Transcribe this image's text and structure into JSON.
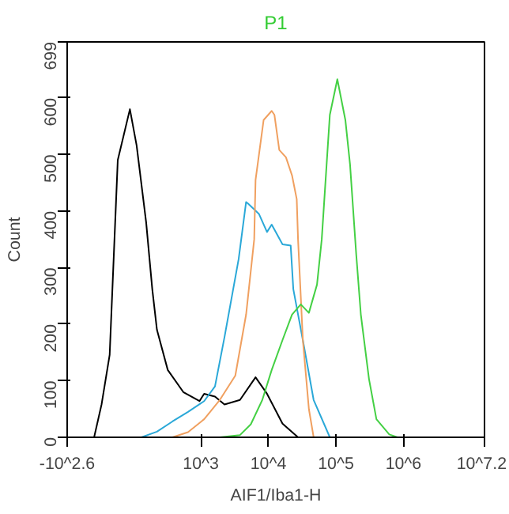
{
  "chart_data": {
    "type": "line",
    "title": "P1",
    "xlabel": "AIF1/Iba1-H",
    "ylabel": "Count",
    "log": "x",
    "xlim": [
      10.5,
      15848932
    ],
    "xticks": [
      {
        "value": 10.5,
        "label": "-10^2.6"
      },
      {
        "value": 1000,
        "label": "10^3"
      },
      {
        "value": 10000,
        "label": "10^4"
      },
      {
        "value": 100000,
        "label": "10^5"
      },
      {
        "value": 1000000,
        "label": "10^6"
      },
      {
        "value": 15848932,
        "label": "10^7.2"
      }
    ],
    "ylim": [
      0,
      699
    ],
    "yticks": [
      0,
      100,
      200,
      300,
      400,
      500,
      600,
      699
    ],
    "grid": false,
    "series": [
      {
        "color": "#000000",
        "x": [
          26.3,
          33.9,
          44.7,
          58.9,
          89.1,
          112,
          155,
          191,
          224,
          324,
          550,
          955,
          1120,
          1620,
          2240,
          3800,
          6460,
          9550,
          16200,
          27500
        ],
        "values": [
          0,
          58,
          146,
          490,
          580,
          516,
          380,
          262,
          190,
          119,
          80,
          64,
          77,
          72,
          58,
          66,
          106,
          77,
          24,
          0
        ]
      },
      {
        "color": "#2aa8d8",
        "x": [
          132,
          224,
          380,
          646,
          1120,
          1620,
          2240,
          3630,
          4680,
          5010,
          7240,
          9550,
          11200,
          16200,
          21400,
          23400,
          32400,
          46800,
          81300
        ],
        "values": [
          0,
          10,
          28,
          45,
          64,
          90,
          177,
          315,
          416,
          413,
          395,
          363,
          376,
          341,
          339,
          262,
          172,
          66,
          0
        ]
      },
      {
        "color": "#f0a060",
        "x": [
          380,
          646,
          1120,
          1910,
          3240,
          4680,
          6170,
          6460,
          8510,
          11200,
          12300,
          14500,
          18200,
          22400,
          26300,
          27500,
          32400,
          39800,
          46800
        ],
        "values": [
          0,
          9,
          32,
          66,
          109,
          217,
          350,
          455,
          561,
          577,
          570,
          508,
          495,
          463,
          421,
          350,
          172,
          50,
          0
        ]
      },
      {
        "color": "#44d044",
        "x": [
          1910,
          3800,
          5500,
          8130,
          11200,
          16200,
          22400,
          30200,
          39800,
          52500,
          61700,
          81300,
          105000,
          138000,
          162000,
          200000,
          234000,
          309000,
          398000,
          617000,
          813000
        ],
        "values": [
          0,
          4,
          23,
          66,
          119,
          172,
          217,
          235,
          220,
          270,
          350,
          570,
          633,
          561,
          482,
          323,
          217,
          103,
          32,
          5,
          0
        ]
      }
    ]
  }
}
